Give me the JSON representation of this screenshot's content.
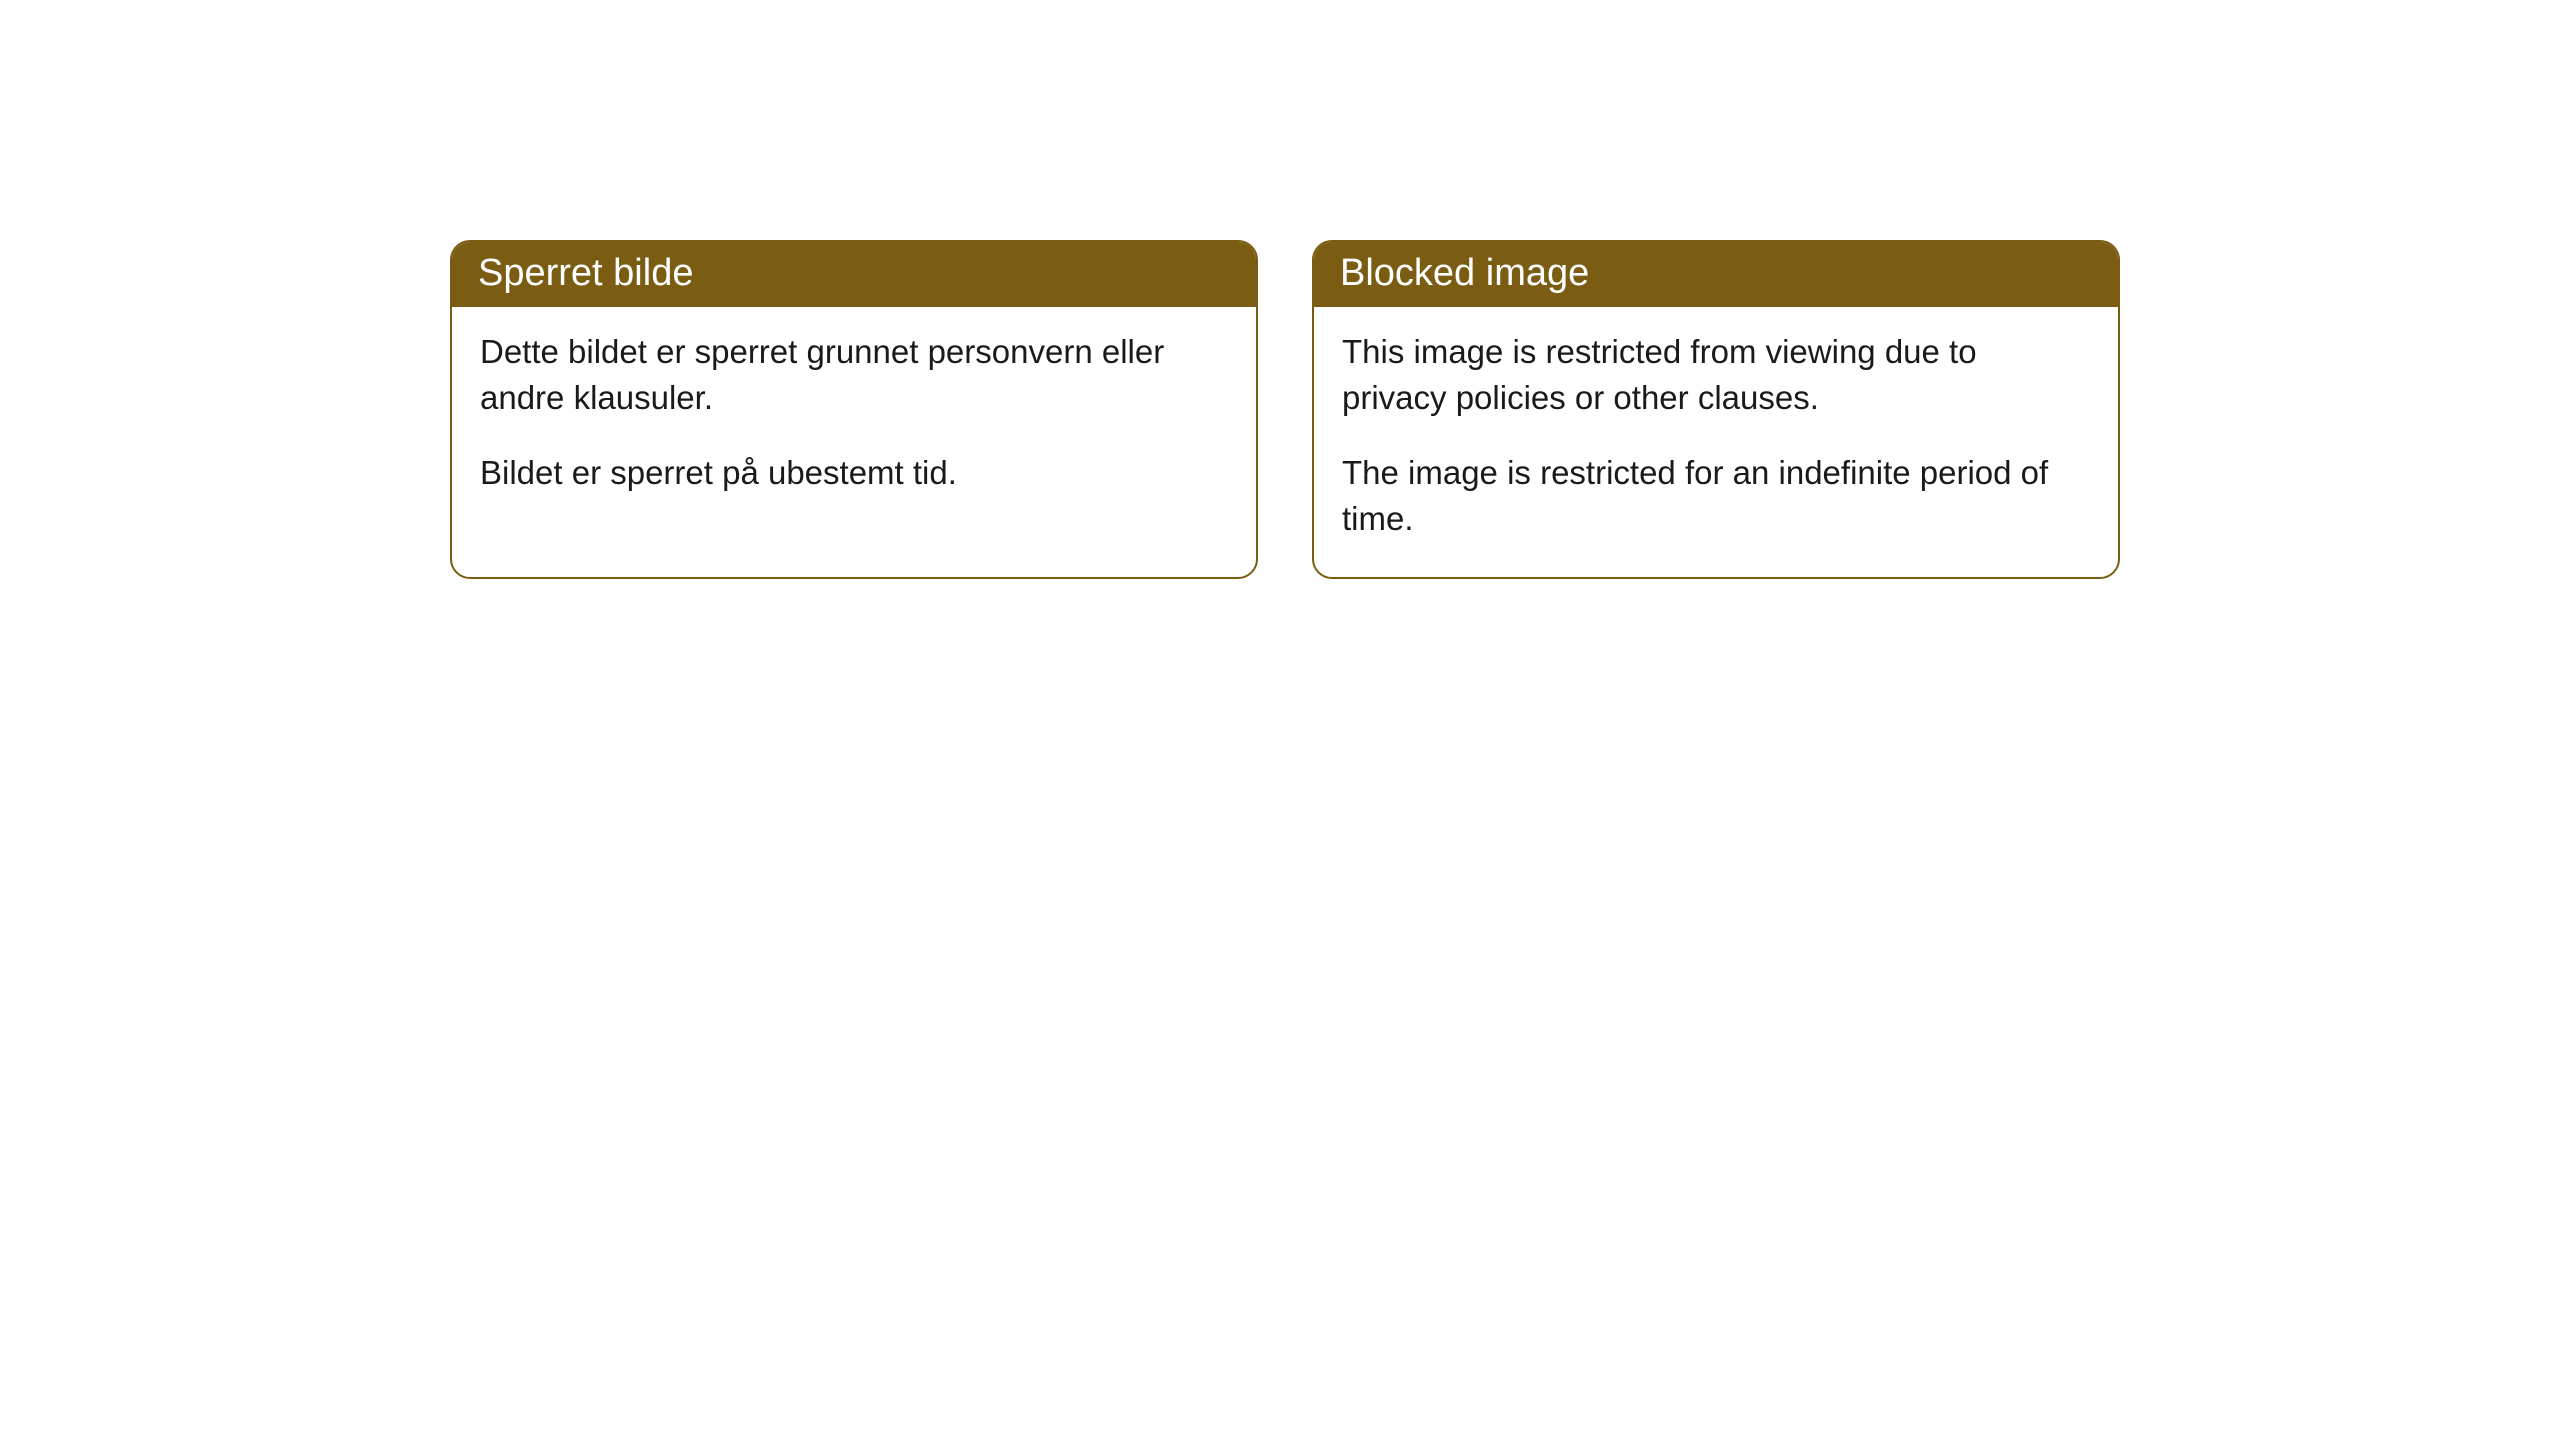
{
  "cards": [
    {
      "title": "Sperret bilde",
      "paragraph1": "Dette bildet er sperret grunnet personvern eller andre klausuler.",
      "paragraph2": "Bildet er sperret på ubestemt tid."
    },
    {
      "title": "Blocked image",
      "paragraph1": "This image is restricted from viewing due to privacy policies or other clauses.",
      "paragraph2": "The image is restricted for an indefinite period of time."
    }
  ],
  "styling": {
    "header_background": "#7a5c12",
    "header_text_color": "#ffffff",
    "border_color": "#7a5c12",
    "body_background": "#ffffff",
    "body_text_color": "#1a1a1a",
    "border_radius": 20,
    "header_fontsize": 38,
    "body_fontsize": 33
  }
}
